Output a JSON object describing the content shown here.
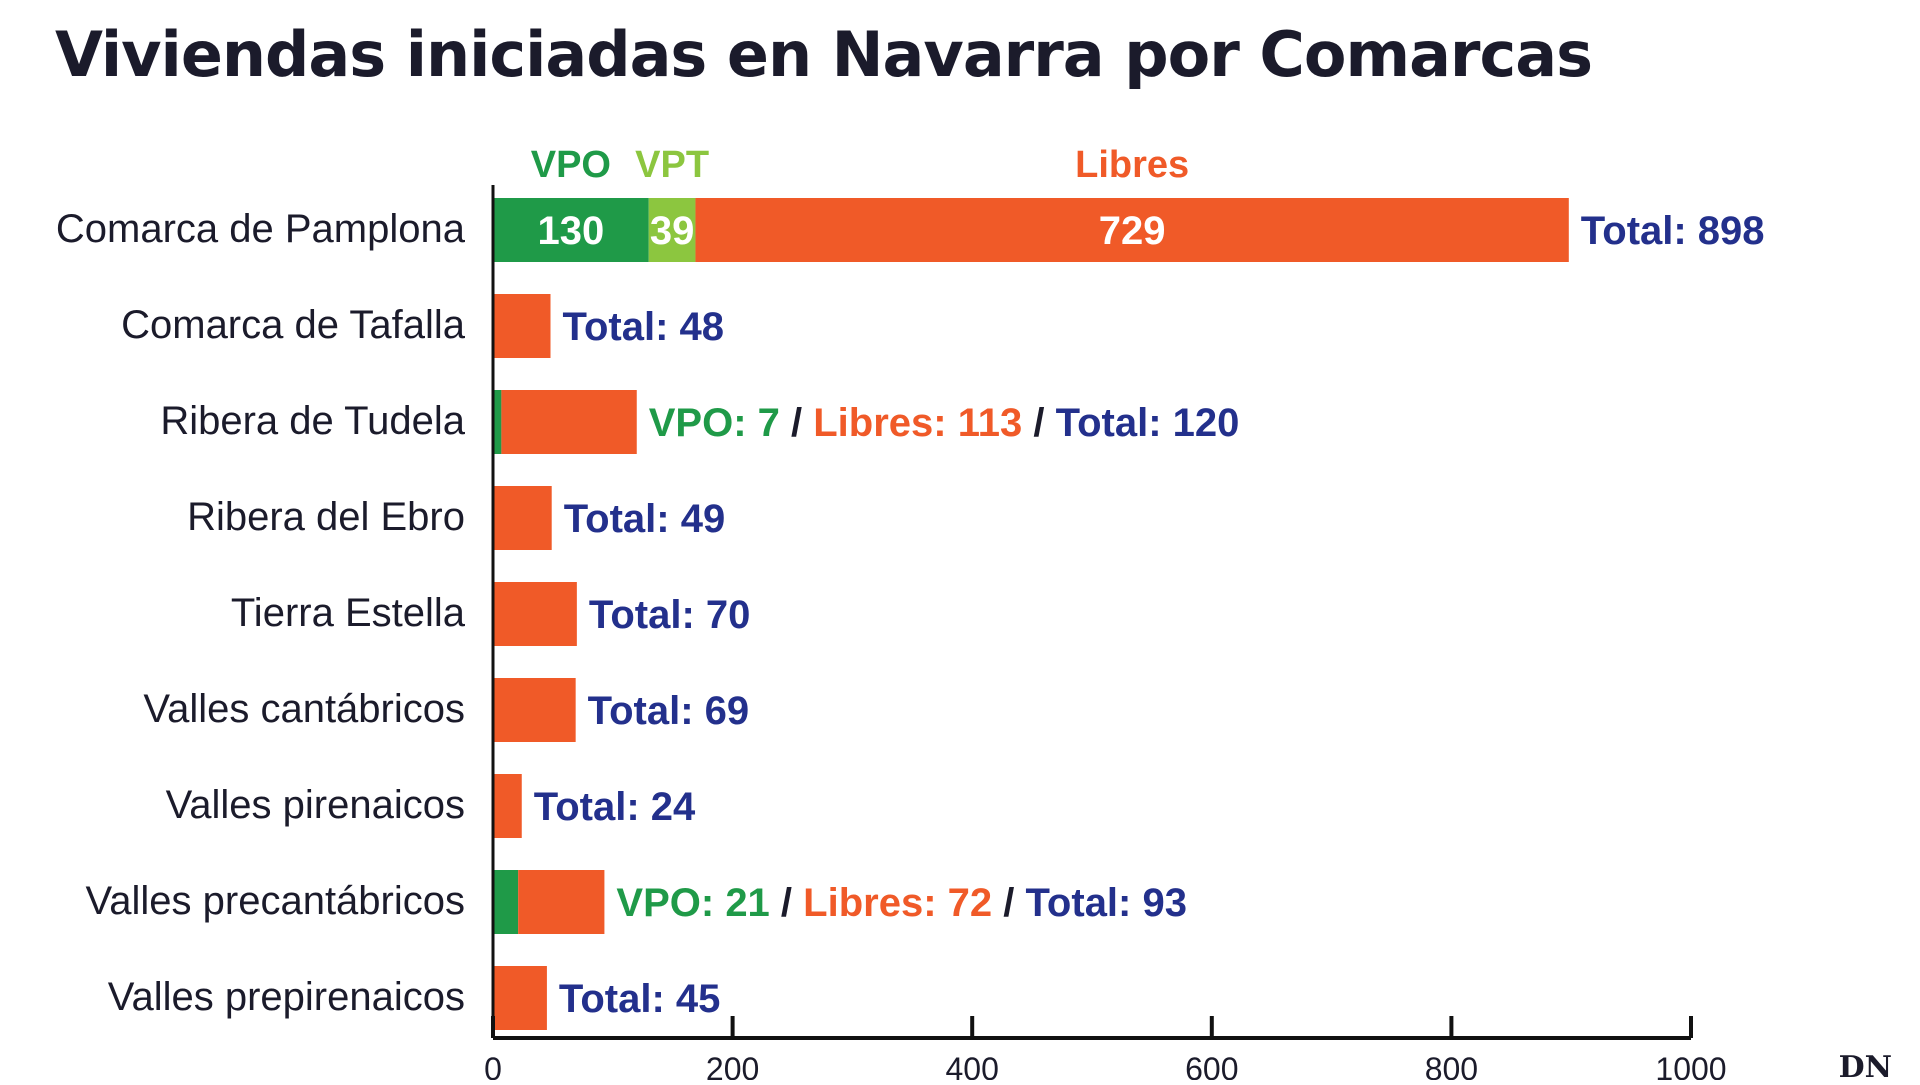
{
  "title": "Viviendas iniciadas en Navarra por Comarcas",
  "source": "DN",
  "colors": {
    "vpo": "#1f9a48",
    "vpt": "#8cc63f",
    "libres": "#f05a28",
    "total": "#23308c",
    "text": "#1b1b2b"
  },
  "chart_data": {
    "type": "bar",
    "orientation": "horizontal",
    "stacked": true,
    "title": "Viviendas iniciadas en Navarra por Comarcas",
    "xlim": [
      0,
      1000
    ],
    "x_ticks": [
      0,
      200,
      400,
      600,
      800,
      1000
    ],
    "grid": false,
    "legend": {
      "placement": "top",
      "items": [
        {
          "key": "vpo",
          "label": "VPO"
        },
        {
          "key": "vpt",
          "label": "VPT"
        },
        {
          "key": "libres",
          "label": "Libres"
        }
      ]
    },
    "categories": [
      "Comarca de Pamplona",
      "Comarca de Tafalla",
      "Ribera de Tudela",
      "Ribera del Ebro",
      "Tierra Estella",
      "Valles cantábricos",
      "Valles pirenaicos",
      "Valles precantábricos",
      "Valles prepirenaicos"
    ],
    "series": [
      {
        "name": "VPO",
        "key": "vpo",
        "values": [
          130,
          0,
          7,
          0,
          0,
          0,
          0,
          21,
          0
        ]
      },
      {
        "name": "VPT",
        "key": "vpt",
        "values": [
          39,
          0,
          0,
          0,
          0,
          0,
          0,
          0,
          0
        ]
      },
      {
        "name": "Libres",
        "key": "libres",
        "values": [
          729,
          48,
          113,
          49,
          70,
          69,
          24,
          72,
          45
        ]
      }
    ],
    "totals": [
      898,
      48,
      120,
      49,
      70,
      69,
      24,
      93,
      45
    ],
    "inner_labels": [
      {
        "category": 0,
        "series": "vpo",
        "text": "130"
      },
      {
        "category": 0,
        "series": "vpt",
        "text": "39"
      },
      {
        "category": 0,
        "series": "libres",
        "text": "729"
      }
    ],
    "annotations": [
      [
        {
          "text": "Total: 898",
          "color": "total"
        }
      ],
      [
        {
          "text": "Total: 48",
          "color": "total"
        }
      ],
      [
        {
          "text": "VPO: 7",
          "color": "vpo"
        },
        {
          "text": " / ",
          "color": "text"
        },
        {
          "text": "Libres: 113",
          "color": "libres"
        },
        {
          "text": " / ",
          "color": "text"
        },
        {
          "text": "Total: 120",
          "color": "total"
        }
      ],
      [
        {
          "text": "Total: 49",
          "color": "total"
        }
      ],
      [
        {
          "text": "Total: 70",
          "color": "total"
        }
      ],
      [
        {
          "text": "Total: 69",
          "color": "total"
        }
      ],
      [
        {
          "text": "Total: 24",
          "color": "total"
        }
      ],
      [
        {
          "text": "VPO: 21",
          "color": "vpo"
        },
        {
          "text": " / ",
          "color": "text"
        },
        {
          "text": "Libres: 72",
          "color": "libres"
        },
        {
          "text": " / ",
          "color": "text"
        },
        {
          "text": "Total: 93",
          "color": "total"
        }
      ],
      [
        {
          "text": "Total: 45",
          "color": "total"
        }
      ]
    ]
  }
}
